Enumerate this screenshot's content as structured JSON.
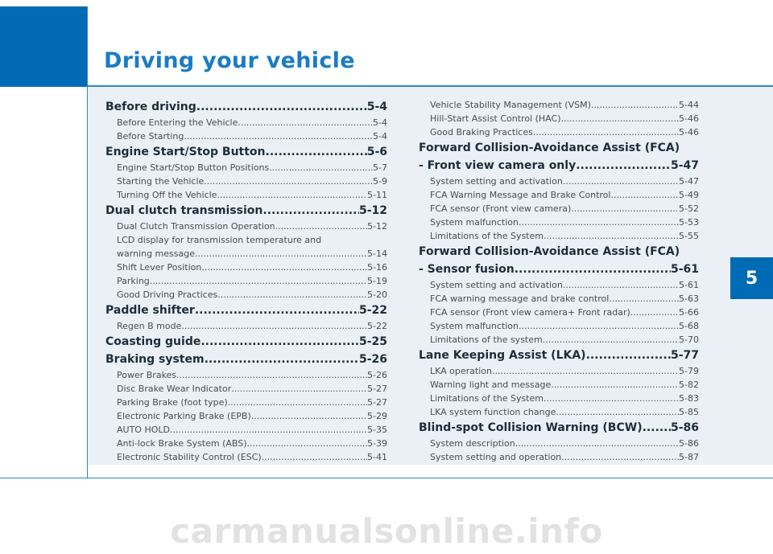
{
  "header": {
    "title": "Driving your vehicle"
  },
  "chapter_tab": "5",
  "watermark": "carmanualsonline.info",
  "toc_left": [
    {
      "type": "main",
      "title": "Before driving",
      "page": "5-4"
    },
    {
      "type": "sub",
      "title": "Before Entering the Vehicle",
      "page": "5-4"
    },
    {
      "type": "sub",
      "title": "Before Starting",
      "page": "5-4"
    },
    {
      "type": "main",
      "title": "Engine Start/Stop Button",
      "page": "5-6"
    },
    {
      "type": "sub",
      "title": "Engine Start/Stop Button Positions",
      "page": "5-7"
    },
    {
      "type": "sub",
      "title": "Starting the Vehicle",
      "page": "5-9"
    },
    {
      "type": "sub",
      "title": "Turning Off the Vehicle",
      "page": "5-11"
    },
    {
      "type": "main",
      "title": "Dual clutch transmission",
      "page": "5-12"
    },
    {
      "type": "sub",
      "title": "Dual Clutch Transmission Operation",
      "page": "5-12"
    },
    {
      "type": "subwrap",
      "title": "LCD display for transmission temperature and"
    },
    {
      "type": "sub",
      "title": "warning message",
      "page": "5-14"
    },
    {
      "type": "sub",
      "title": "Shift Lever Position",
      "page": "5-16"
    },
    {
      "type": "sub",
      "title": "Parking",
      "page": "5-19"
    },
    {
      "type": "sub",
      "title": "Good Driving Practices",
      "page": "5-20"
    },
    {
      "type": "main",
      "title": "Paddle shifter",
      "page": "5-22"
    },
    {
      "type": "sub",
      "title": "Regen B mode",
      "page": "5-22"
    },
    {
      "type": "main",
      "title": "Coasting guide",
      "page": "5-25"
    },
    {
      "type": "main",
      "title": "Braking system",
      "page": "5-26"
    },
    {
      "type": "sub",
      "title": "Power Brakes",
      "page": "5-26"
    },
    {
      "type": "sub",
      "title": "Disc Brake Wear Indicator",
      "page": "5-27"
    },
    {
      "type": "sub",
      "title": "Parking Brake (foot type)",
      "page": "5-27"
    },
    {
      "type": "sub",
      "title": "Electronic Parking Brake (EPB)",
      "page": "5-29"
    },
    {
      "type": "sub",
      "title": "AUTO HOLD",
      "page": "5-35"
    },
    {
      "type": "sub",
      "title": "Anti-lock Brake System (ABS)",
      "page": "5-39"
    },
    {
      "type": "sub",
      "title": "Electronic Stability Control (ESC)",
      "page": "5-41"
    }
  ],
  "toc_right": [
    {
      "type": "sub",
      "title": "Vehicle Stability Management (VSM)",
      "page": "5-44"
    },
    {
      "type": "sub",
      "title": "Hill-Start Assist Control (HAC)",
      "page": "5-46"
    },
    {
      "type": "sub",
      "title": "Good Braking Practices",
      "page": "5-46"
    },
    {
      "type": "mainwrap",
      "title": "Forward Collision-Avoidance Assist (FCA)"
    },
    {
      "type": "main",
      "title": "- Front view camera only",
      "page": "5-47"
    },
    {
      "type": "sub",
      "title": "System setting and activation",
      "page": "5-47"
    },
    {
      "type": "sub",
      "title": "FCA Warning Message and Brake Control",
      "page": "5-49"
    },
    {
      "type": "sub",
      "title": "FCA sensor (Front view camera)",
      "page": "5-52"
    },
    {
      "type": "sub",
      "title": "System malfunction",
      "page": "5-53"
    },
    {
      "type": "sub",
      "title": "Limitations of the System",
      "page": "5-55"
    },
    {
      "type": "mainwrap",
      "title": "Forward Collision-Avoidance Assist (FCA)"
    },
    {
      "type": "main",
      "title": "- Sensor fusion",
      "page": "5-61"
    },
    {
      "type": "sub",
      "title": "System setting and activation",
      "page": "5-61"
    },
    {
      "type": "sub",
      "title": "FCA warning message and brake control",
      "page": "5-63"
    },
    {
      "type": "sub",
      "title": "FCA sensor (Front view camera+ Front radar)",
      "page": "5-66"
    },
    {
      "type": "sub",
      "title": "System malfunction",
      "page": "5-68"
    },
    {
      "type": "sub",
      "title": "Limitations of the system",
      "page": "5-70"
    },
    {
      "type": "main",
      "title": "Lane Keeping Assist (LKA)",
      "page": "5-77"
    },
    {
      "type": "sub",
      "title": "LKA operation",
      "page": "5-79"
    },
    {
      "type": "sub",
      "title": "Warning light and message",
      "page": "5-82"
    },
    {
      "type": "sub",
      "title": "Limitations of the System",
      "page": "5-83"
    },
    {
      "type": "sub",
      "title": "LKA system function change",
      "page": "5-85"
    },
    {
      "type": "main",
      "title": "Blind-spot Collision Warning (BCW)",
      "page": "5-86"
    },
    {
      "type": "sub",
      "title": "System description",
      "page": "5-86"
    },
    {
      "type": "sub",
      "title": "System setting and operation",
      "page": "5-87"
    }
  ]
}
